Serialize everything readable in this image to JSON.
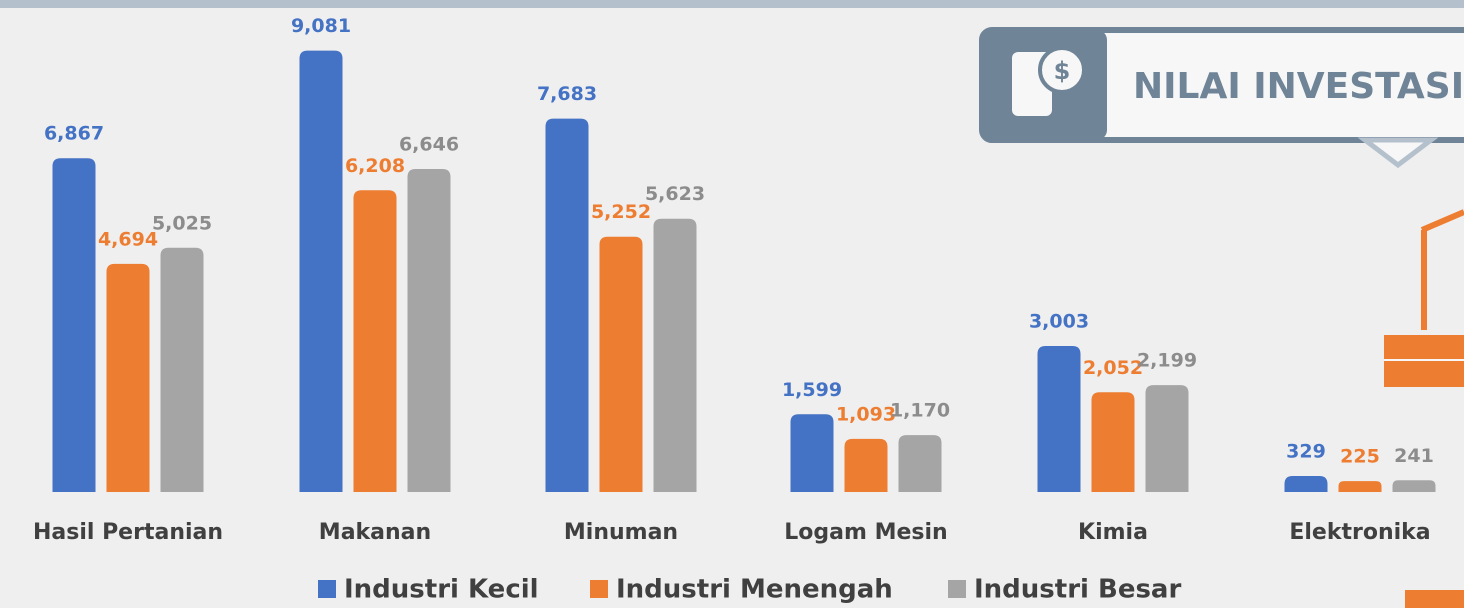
{
  "chart_data": {
    "type": "bar",
    "title": "NILAI INVESTASI",
    "categories": [
      "Hasil Pertanian",
      "Makanan",
      "Minuman",
      "Logam Mesin",
      "Kimia",
      "Elektronika"
    ],
    "series": [
      {
        "name": "Industri Kecil",
        "color": "#4472c4",
        "values": [
          6867,
          9081,
          7683,
          1599,
          3003,
          329
        ],
        "value_labels": [
          "6,867",
          "9,081",
          "7,683",
          "1,599",
          "3,003",
          "329"
        ]
      },
      {
        "name": "Industri Menengah",
        "color": "#ed7d31",
        "values": [
          4694,
          6208,
          5252,
          1093,
          2052,
          225
        ],
        "value_labels": [
          "4,694",
          "6,208",
          "5,252",
          "1,093",
          "2,052",
          "225"
        ]
      },
      {
        "name": "Industri Besar",
        "color": "#a5a5a5",
        "values": [
          5025,
          6646,
          5623,
          1170,
          2199,
          241
        ],
        "value_labels": [
          "5,025",
          "6,646",
          "5,623",
          "1,170",
          "2,199",
          "241"
        ]
      }
    ],
    "ylim": [
      0,
      9300
    ],
    "legend": "bottom"
  }
}
